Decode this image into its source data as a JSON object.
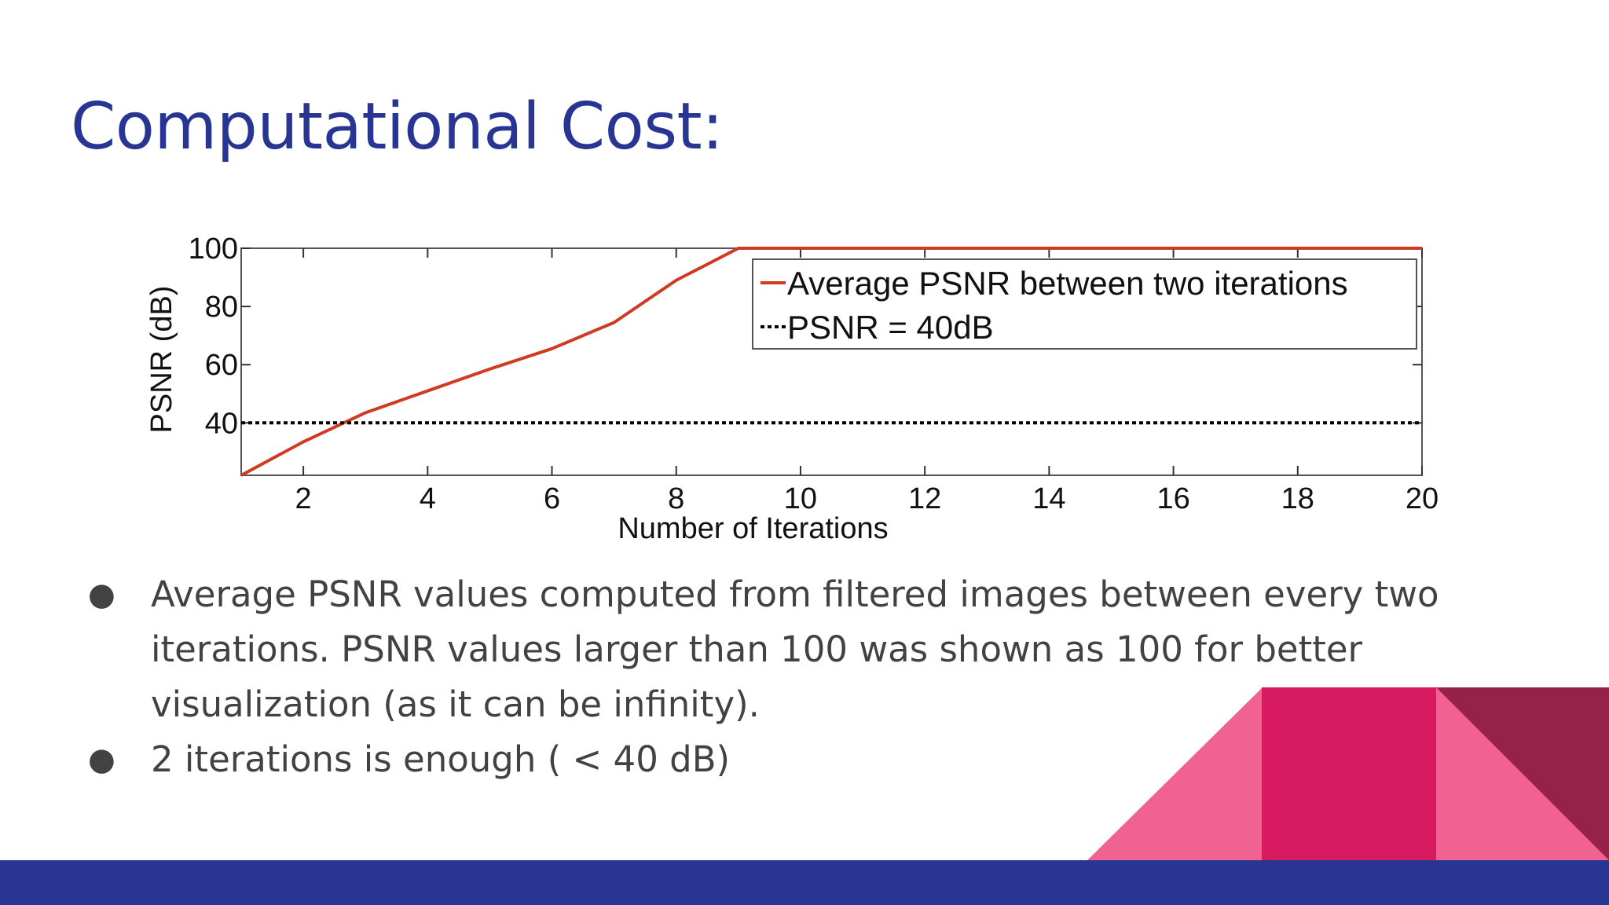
{
  "slide": {
    "title": "Computational Cost:",
    "bullets": [
      "Average PSNR values computed from filtered images between every two iterations. PSNR values larger than 100 was shown as 100 for better visualization (as it can be infinity).",
      "2 iterations is enough ( < 40 dB)"
    ],
    "bullet_glyph": "●"
  },
  "colors": {
    "title": "#283593",
    "footer": "#283593",
    "text": "#424242",
    "series_red": "#d03a22",
    "decor_pink": "#f06292",
    "decor_magenta": "#d81b60",
    "decor_maroon": "#962249"
  },
  "chart_data": {
    "type": "line",
    "title": "",
    "xlabel": "Number of Iterations",
    "ylabel": "PSNR (dB)",
    "xlim": [
      1,
      20
    ],
    "ylim": [
      22,
      100
    ],
    "xticks": [
      2,
      4,
      6,
      8,
      10,
      12,
      14,
      16,
      18,
      20
    ],
    "yticks": [
      40,
      60,
      80,
      100
    ],
    "grid": false,
    "legend_position": "top-right",
    "series": [
      {
        "name": "Average PSNR between two iterations",
        "color": "#d03a22",
        "style": "solid",
        "x": [
          1,
          2,
          3,
          4,
          5,
          6,
          7,
          8,
          9,
          10,
          11,
          12,
          13,
          14,
          15,
          16,
          17,
          18,
          19,
          20
        ],
        "y": [
          22,
          33.5,
          43.5,
          51,
          58.5,
          65.5,
          74.5,
          89,
          100,
          100,
          100,
          100,
          100,
          100,
          100,
          100,
          100,
          100,
          100,
          100
        ]
      },
      {
        "name": "PSNR = 40dB",
        "color": "#000000",
        "style": "dotted",
        "x": [
          1,
          20
        ],
        "y": [
          40,
          40
        ]
      }
    ]
  }
}
